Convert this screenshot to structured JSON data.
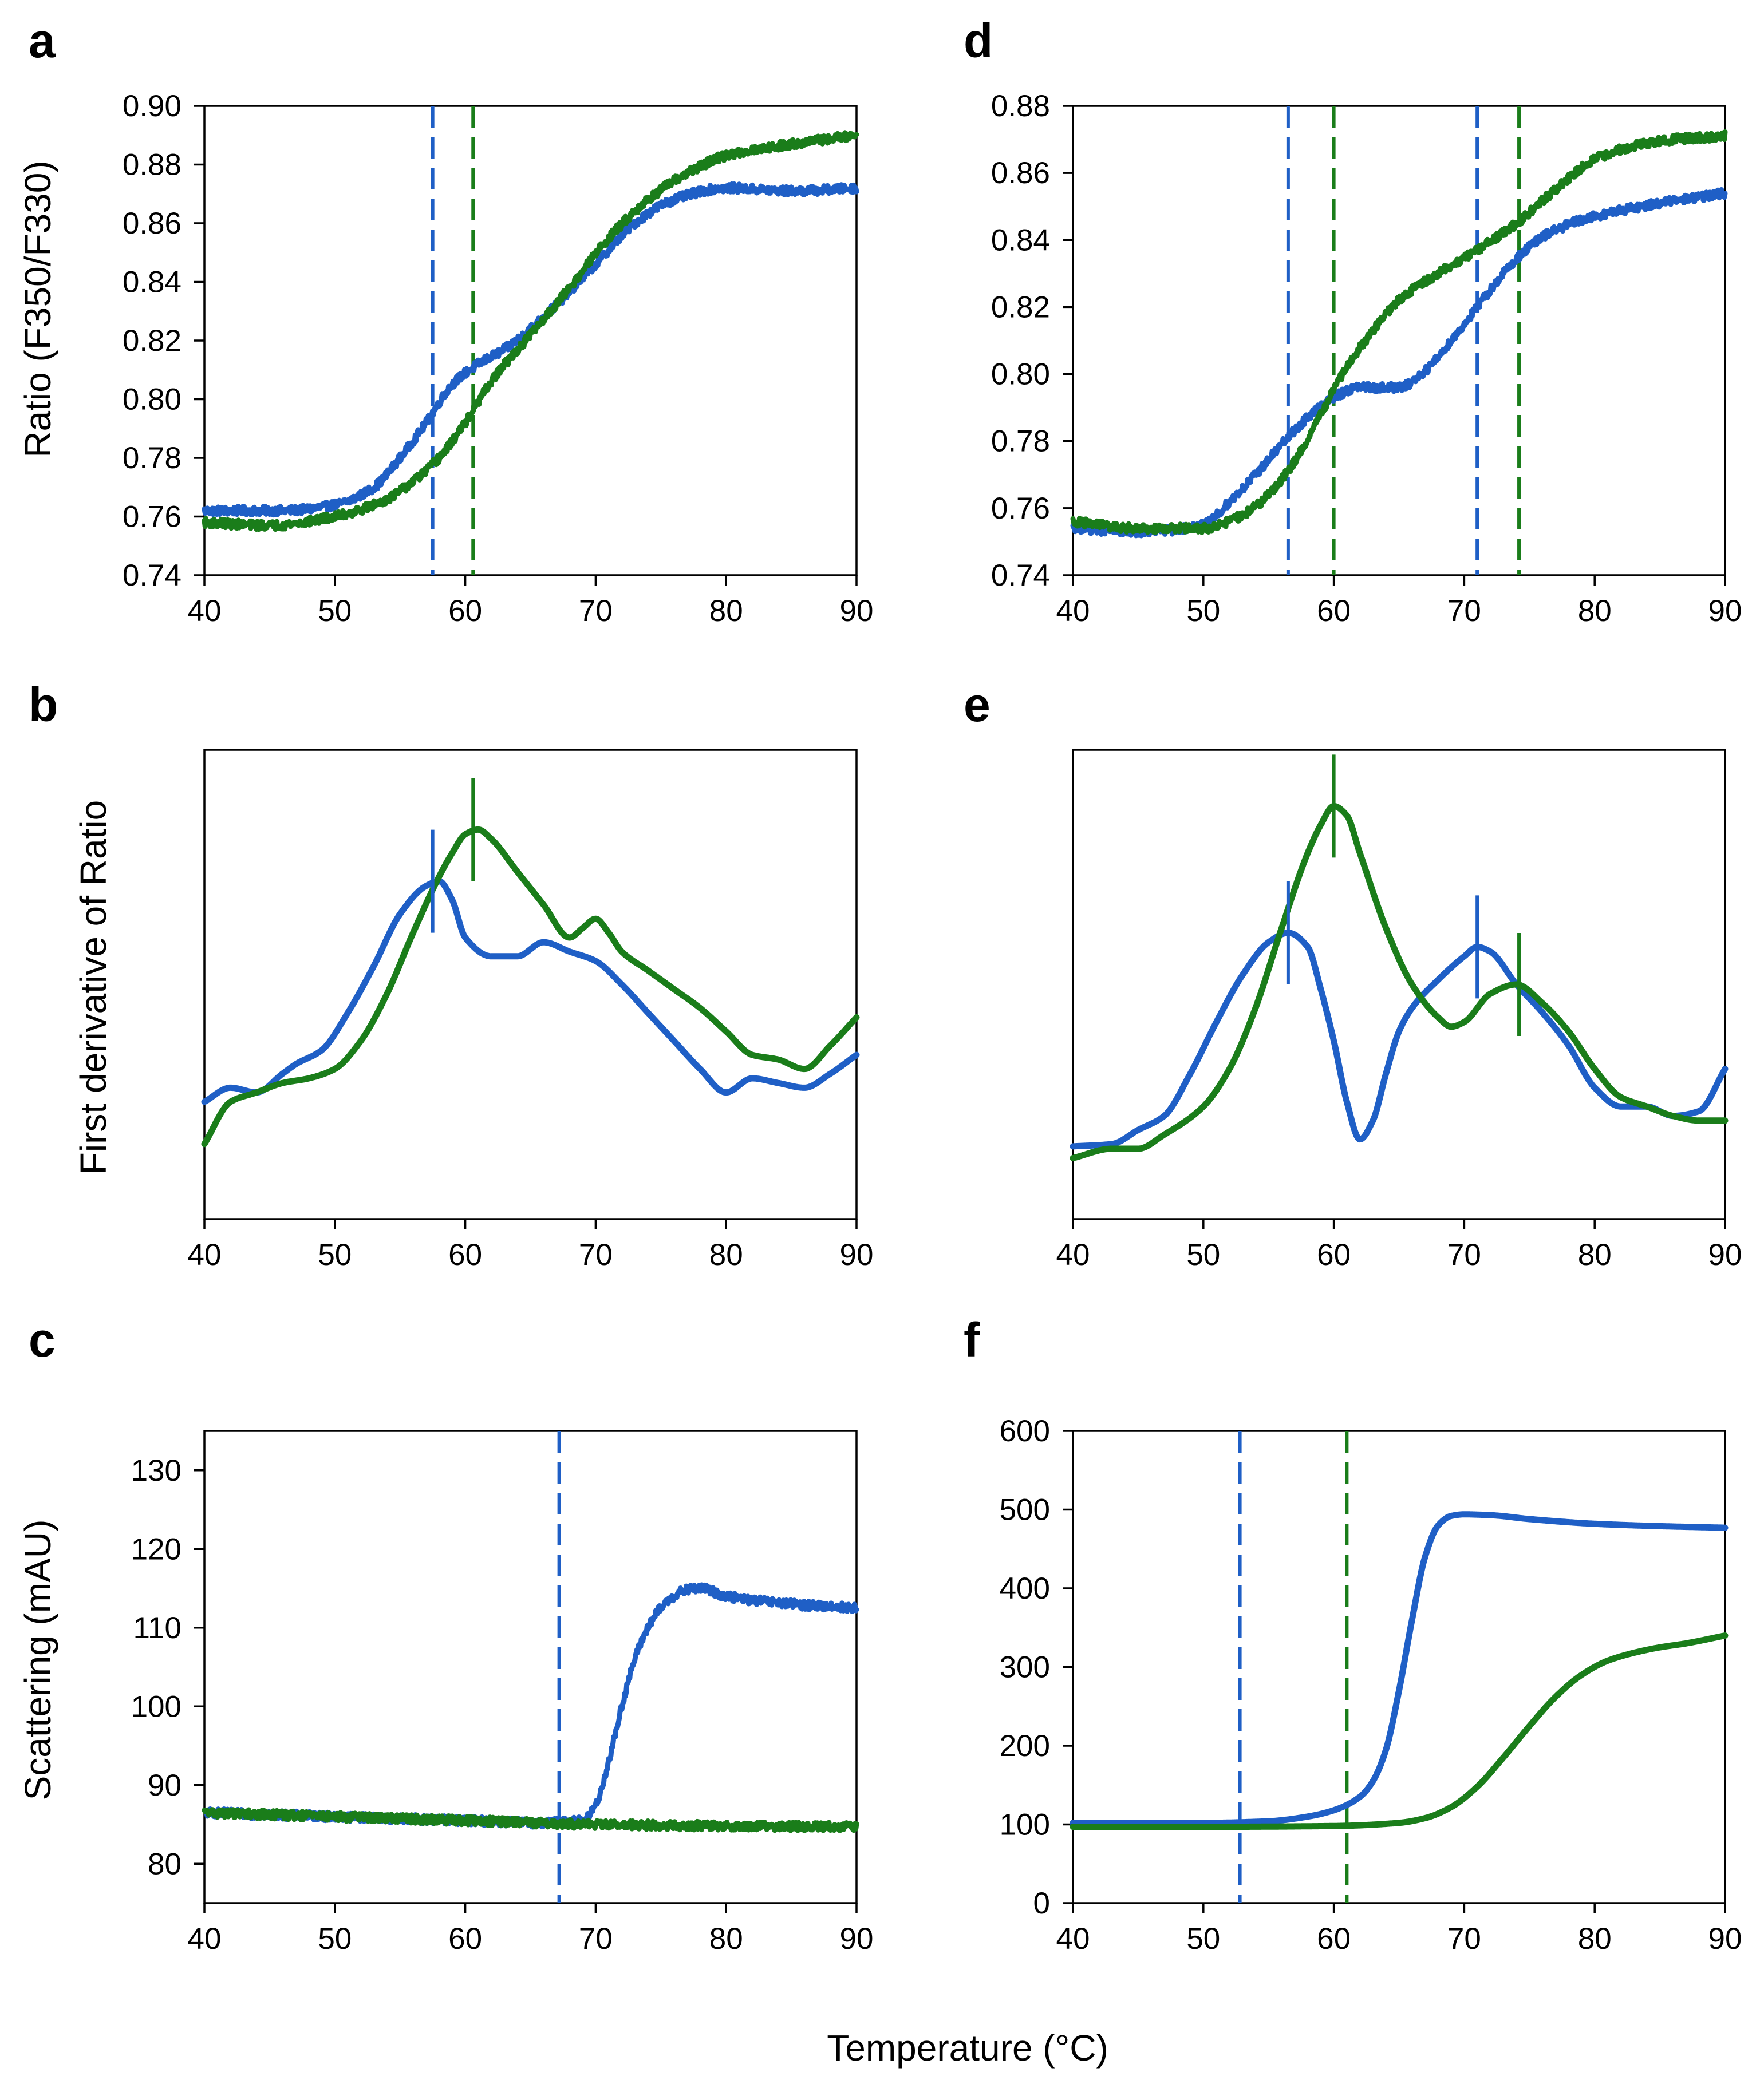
{
  "figure": {
    "xlabel": "Temperature (°C)",
    "colors": {
      "blue": "#1f5fc6",
      "green": "#1a7d1a"
    }
  },
  "chart_data": [
    {
      "id": "a",
      "letter": "a",
      "type": "line",
      "ylabel": "Ratio (F350/F330)",
      "ylabel_group": "ab",
      "xlim": [
        40,
        90
      ],
      "ylim": [
        0.74,
        0.9
      ],
      "xticks": [
        40,
        50,
        60,
        70,
        80,
        90
      ],
      "yticks": [
        0.74,
        0.76,
        0.78,
        0.8,
        0.82,
        0.84,
        0.86,
        0.88,
        0.9
      ],
      "ytick_labels": [
        "0.74",
        "0.76",
        "0.78",
        "0.80",
        "0.82",
        "0.84",
        "0.86",
        "0.88",
        "0.90"
      ],
      "noisy": true,
      "series": [
        {
          "name": "blue",
          "color": "#1f5fc6",
          "x": [
            40,
            46,
            50,
            53,
            55,
            57,
            59,
            61,
            63,
            66,
            70,
            73,
            76,
            80,
            85,
            90
          ],
          "y": [
            0.762,
            0.762,
            0.764,
            0.77,
            0.78,
            0.792,
            0.805,
            0.812,
            0.817,
            0.828,
            0.846,
            0.86,
            0.868,
            0.872,
            0.871,
            0.872
          ]
        },
        {
          "name": "green",
          "color": "#1a7d1a",
          "x": [
            40,
            45,
            50,
            54,
            56,
            58,
            60,
            62,
            65,
            68,
            71,
            74,
            77,
            80,
            85,
            90
          ],
          "y": [
            0.758,
            0.757,
            0.76,
            0.766,
            0.772,
            0.78,
            0.792,
            0.806,
            0.822,
            0.838,
            0.855,
            0.868,
            0.877,
            0.883,
            0.887,
            0.89
          ]
        }
      ],
      "vlines": [
        {
          "x": 57.5,
          "color": "#1f5fc6",
          "style": "dashed"
        },
        {
          "x": 60.6,
          "color": "#1a7d1a",
          "style": "dashed"
        }
      ]
    },
    {
      "id": "b",
      "letter": "b",
      "type": "line",
      "ylabel": "First derivative of Ratio",
      "ylabel_group": "ab",
      "xlim": [
        40,
        90
      ],
      "ylim": [
        0,
        1
      ],
      "xticks": [
        40,
        50,
        60,
        70,
        80,
        90
      ],
      "yticks": [],
      "ytick_labels": [],
      "noisy": false,
      "series": [
        {
          "name": "blue",
          "color": "#1f5fc6",
          "x": [
            40,
            42,
            44,
            46,
            47,
            49,
            51,
            53,
            55,
            57,
            58,
            59,
            60,
            62,
            64,
            66,
            68,
            70,
            72,
            74,
            76,
            78,
            80,
            82,
            84,
            86,
            88,
            90
          ],
          "y": [
            0.25,
            0.28,
            0.27,
            0.31,
            0.33,
            0.36,
            0.44,
            0.54,
            0.65,
            0.71,
            0.72,
            0.68,
            0.6,
            0.56,
            0.56,
            0.59,
            0.57,
            0.55,
            0.5,
            0.44,
            0.38,
            0.32,
            0.27,
            0.3,
            0.29,
            0.28,
            0.31,
            0.35
          ]
        },
        {
          "name": "green",
          "color": "#1a7d1a",
          "x": [
            40,
            42,
            44,
            46,
            48,
            50,
            52,
            54,
            56,
            58,
            59,
            60,
            61,
            62,
            64,
            66,
            68,
            69,
            70,
            71,
            72,
            74,
            76,
            78,
            80,
            82,
            84,
            86,
            88,
            90
          ],
          "y": [
            0.16,
            0.25,
            0.27,
            0.29,
            0.3,
            0.32,
            0.38,
            0.48,
            0.61,
            0.73,
            0.78,
            0.82,
            0.83,
            0.81,
            0.74,
            0.67,
            0.6,
            0.62,
            0.64,
            0.61,
            0.57,
            0.53,
            0.49,
            0.45,
            0.4,
            0.35,
            0.34,
            0.32,
            0.37,
            0.43
          ]
        }
      ],
      "ticks": [
        {
          "x": 57.5,
          "y": 0.72,
          "color": "#1f5fc6"
        },
        {
          "x": 60.6,
          "y": 0.83,
          "color": "#1a7d1a"
        }
      ]
    },
    {
      "id": "c",
      "letter": "c",
      "type": "line",
      "ylabel": "Scattering (mAU)",
      "ylabel_group": "c",
      "xlim": [
        40,
        90
      ],
      "ylim": [
        75,
        135
      ],
      "xticks": [
        40,
        50,
        60,
        70,
        80,
        90
      ],
      "yticks": [
        80,
        90,
        100,
        110,
        120,
        130
      ],
      "ytick_labels": [
        "80",
        "90",
        "100",
        "110",
        "120",
        "130"
      ],
      "noisy": true,
      "series": [
        {
          "name": "blue",
          "color": "#1f5fc6",
          "x": [
            40,
            50,
            60,
            66,
            69,
            70,
            71,
            72,
            73,
            74,
            75,
            76,
            77,
            78,
            80,
            85,
            90
          ],
          "y": [
            86.5,
            86.0,
            85.5,
            85.2,
            85.5,
            87.5,
            93.0,
            100.0,
            106.0,
            110.0,
            112.5,
            114.0,
            114.8,
            115.0,
            114.0,
            113.0,
            112.5
          ]
        },
        {
          "name": "green",
          "color": "#1a7d1a",
          "x": [
            40,
            50,
            60,
            70,
            80,
            90
          ],
          "y": [
            86.5,
            86.0,
            85.5,
            85.0,
            84.8,
            84.7
          ]
        }
      ],
      "vlines": [
        {
          "x": 67.2,
          "color": "#1f5fc6",
          "style": "dashed"
        }
      ]
    },
    {
      "id": "d",
      "letter": "d",
      "type": "line",
      "ylabel": "",
      "ylabel_group": "",
      "xlim": [
        40,
        90
      ],
      "ylim": [
        0.74,
        0.88
      ],
      "xticks": [
        40,
        50,
        60,
        70,
        80,
        90
      ],
      "yticks": [
        0.74,
        0.76,
        0.78,
        0.8,
        0.82,
        0.84,
        0.86,
        0.88
      ],
      "ytick_labels": [
        "0.74",
        "0.76",
        "0.78",
        "0.80",
        "0.82",
        "0.84",
        "0.86",
        "0.88"
      ],
      "noisy": true,
      "series": [
        {
          "name": "blue",
          "color": "#1f5fc6",
          "x": [
            40,
            45,
            50,
            52,
            54,
            56,
            58,
            60,
            62,
            64,
            65,
            67,
            69,
            71,
            73,
            75,
            77,
            80,
            85,
            90
          ],
          "y": [
            0.754,
            0.753,
            0.755,
            0.762,
            0.77,
            0.779,
            0.787,
            0.793,
            0.796,
            0.796,
            0.796,
            0.801,
            0.81,
            0.82,
            0.83,
            0.838,
            0.843,
            0.847,
            0.851,
            0.854
          ]
        },
        {
          "name": "green",
          "color": "#1a7d1a",
          "x": [
            40,
            45,
            50,
            53,
            55,
            57,
            59,
            61,
            63,
            65,
            68,
            71,
            74,
            77,
            80,
            83,
            86,
            90
          ],
          "y": [
            0.756,
            0.754,
            0.754,
            0.758,
            0.764,
            0.774,
            0.788,
            0.802,
            0.813,
            0.822,
            0.83,
            0.837,
            0.845,
            0.855,
            0.864,
            0.868,
            0.87,
            0.871
          ]
        }
      ],
      "vlines": [
        {
          "x": 56.5,
          "color": "#1f5fc6",
          "style": "dashed"
        },
        {
          "x": 60.0,
          "color": "#1a7d1a",
          "style": "dashed"
        },
        {
          "x": 71.0,
          "color": "#1f5fc6",
          "style": "dashed"
        },
        {
          "x": 74.2,
          "color": "#1a7d1a",
          "style": "dashed"
        }
      ]
    },
    {
      "id": "e",
      "letter": "e",
      "type": "line",
      "ylabel": "",
      "ylabel_group": "",
      "xlim": [
        40,
        90
      ],
      "ylim": [
        0,
        1
      ],
      "xticks": [
        40,
        50,
        60,
        70,
        80,
        90
      ],
      "yticks": [],
      "ytick_labels": [],
      "noisy": false,
      "series": [
        {
          "name": "blue",
          "color": "#1f5fc6",
          "x": [
            40,
            43,
            45,
            47,
            49,
            51,
            53,
            55,
            56.5,
            58,
            59,
            60,
            61,
            62,
            63,
            64,
            65,
            66,
            68,
            70,
            71,
            72,
            74,
            76,
            78,
            80,
            82,
            84,
            86,
            88,
            90
          ],
          "y": [
            0.155,
            0.16,
            0.19,
            0.22,
            0.31,
            0.42,
            0.52,
            0.59,
            0.61,
            0.58,
            0.49,
            0.38,
            0.25,
            0.17,
            0.21,
            0.31,
            0.4,
            0.45,
            0.51,
            0.56,
            0.58,
            0.57,
            0.5,
            0.44,
            0.37,
            0.28,
            0.24,
            0.24,
            0.22,
            0.23,
            0.32
          ]
        },
        {
          "name": "green",
          "color": "#1a7d1a",
          "x": [
            40,
            43,
            45,
            47,
            50,
            52,
            54,
            56,
            58,
            59,
            60,
            61,
            62,
            64,
            66,
            68,
            69,
            70,
            72,
            74,
            76,
            78,
            80,
            82,
            84,
            86,
            88,
            90
          ],
          "y": [
            0.13,
            0.15,
            0.15,
            0.18,
            0.24,
            0.32,
            0.45,
            0.62,
            0.78,
            0.84,
            0.88,
            0.86,
            0.78,
            0.62,
            0.5,
            0.43,
            0.41,
            0.42,
            0.48,
            0.5,
            0.46,
            0.4,
            0.32,
            0.26,
            0.24,
            0.22,
            0.21,
            0.21
          ]
        }
      ],
      "ticks": [
        {
          "x": 56.5,
          "y": 0.61,
          "color": "#1f5fc6"
        },
        {
          "x": 60.0,
          "y": 0.88,
          "color": "#1a7d1a"
        },
        {
          "x": 71.0,
          "y": 0.58,
          "color": "#1f5fc6"
        },
        {
          "x": 74.2,
          "y": 0.5,
          "color": "#1a7d1a"
        }
      ]
    },
    {
      "id": "f",
      "letter": "f",
      "type": "line",
      "ylabel": "",
      "ylabel_group": "",
      "xlim": [
        40,
        90
      ],
      "ylim": [
        0,
        600
      ],
      "xticks": [
        40,
        50,
        60,
        70,
        80,
        90
      ],
      "yticks": [
        0,
        100,
        200,
        300,
        400,
        500,
        600
      ],
      "ytick_labels": [
        "0",
        "100",
        "200",
        "300",
        "400",
        "500",
        "600"
      ],
      "noisy": false,
      "series": [
        {
          "name": "blue",
          "color": "#1f5fc6",
          "x": [
            40,
            50,
            55,
            58,
            60,
            62,
            63,
            64,
            65,
            66,
            67,
            68,
            69,
            70,
            72,
            75,
            80,
            85,
            90
          ],
          "y": [
            102,
            102,
            104,
            110,
            118,
            135,
            155,
            195,
            270,
            360,
            440,
            480,
            492,
            494,
            493,
            488,
            482,
            479,
            477
          ]
        },
        {
          "name": "green",
          "color": "#1a7d1a",
          "x": [
            40,
            50,
            60,
            65,
            67,
            69,
            71,
            73,
            75,
            77,
            79,
            81,
            83,
            85,
            87,
            90
          ],
          "y": [
            97,
            97,
            98,
            102,
            108,
            122,
            148,
            185,
            225,
            262,
            290,
            308,
            318,
            325,
            330,
            340
          ]
        }
      ],
      "vlines": [
        {
          "x": 52.8,
          "color": "#1f5fc6",
          "style": "dashed"
        },
        {
          "x": 61.0,
          "color": "#1a7d1a",
          "style": "dashed"
        }
      ]
    }
  ]
}
